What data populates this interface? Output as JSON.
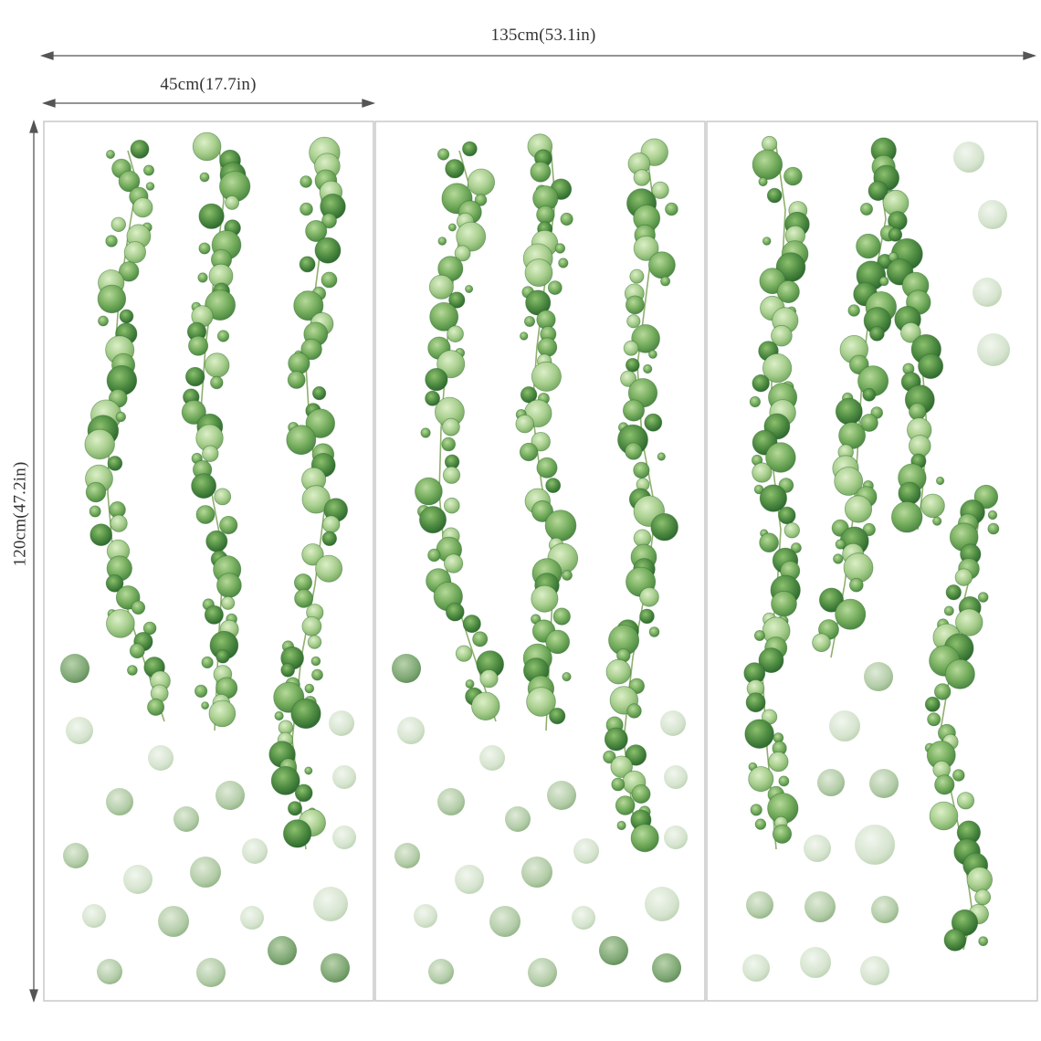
{
  "dimensions": {
    "total_width_label": "135cm(53.1in)",
    "panel_width_label": "45cm(17.7in)",
    "height_label": "120cm(47.2in)"
  },
  "panels": [
    {
      "id": "panel-1",
      "content": "three hanging vines with scattered dots"
    },
    {
      "id": "panel-2",
      "content": "three hanging vines with scattered dots"
    },
    {
      "id": "panel-3",
      "content": "vines and dots"
    }
  ],
  "colors": {
    "leaf_dark": "#3f7a3a",
    "leaf_mid": "#6ea55a",
    "leaf_light": "#a9cf8f",
    "dot_pale": "#d9e6d2",
    "dot_mid": "#b9d1b0",
    "stem": "#8fb06e",
    "frame": "#c8c8c8",
    "arrow": "#555555"
  },
  "icons": [
    "arrow-left-icon",
    "arrow-right-icon",
    "arrow-up-icon",
    "arrow-down-icon"
  ]
}
